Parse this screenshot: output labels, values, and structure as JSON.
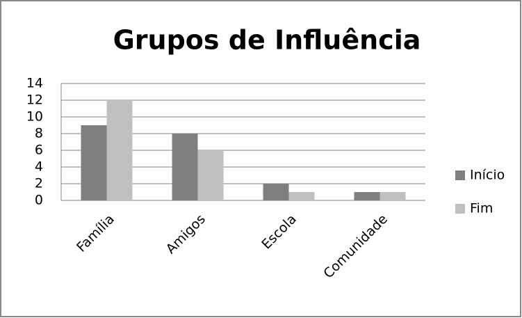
{
  "chart_data": {
    "type": "bar",
    "title": "Grupos de Influência",
    "categories": [
      "Família",
      "Amigos",
      "Escola",
      "Comunidade"
    ],
    "series": [
      {
        "name": "Início",
        "color": "#7f7f7f",
        "values": [
          9,
          8,
          2,
          1
        ]
      },
      {
        "name": "Fim",
        "color": "#bfbfbf",
        "values": [
          12,
          6,
          1,
          1
        ]
      }
    ],
    "ylim": [
      0,
      14
    ],
    "yticks": [
      0,
      2,
      4,
      6,
      8,
      10,
      12,
      14
    ],
    "grid": true,
    "legend": "right"
  }
}
